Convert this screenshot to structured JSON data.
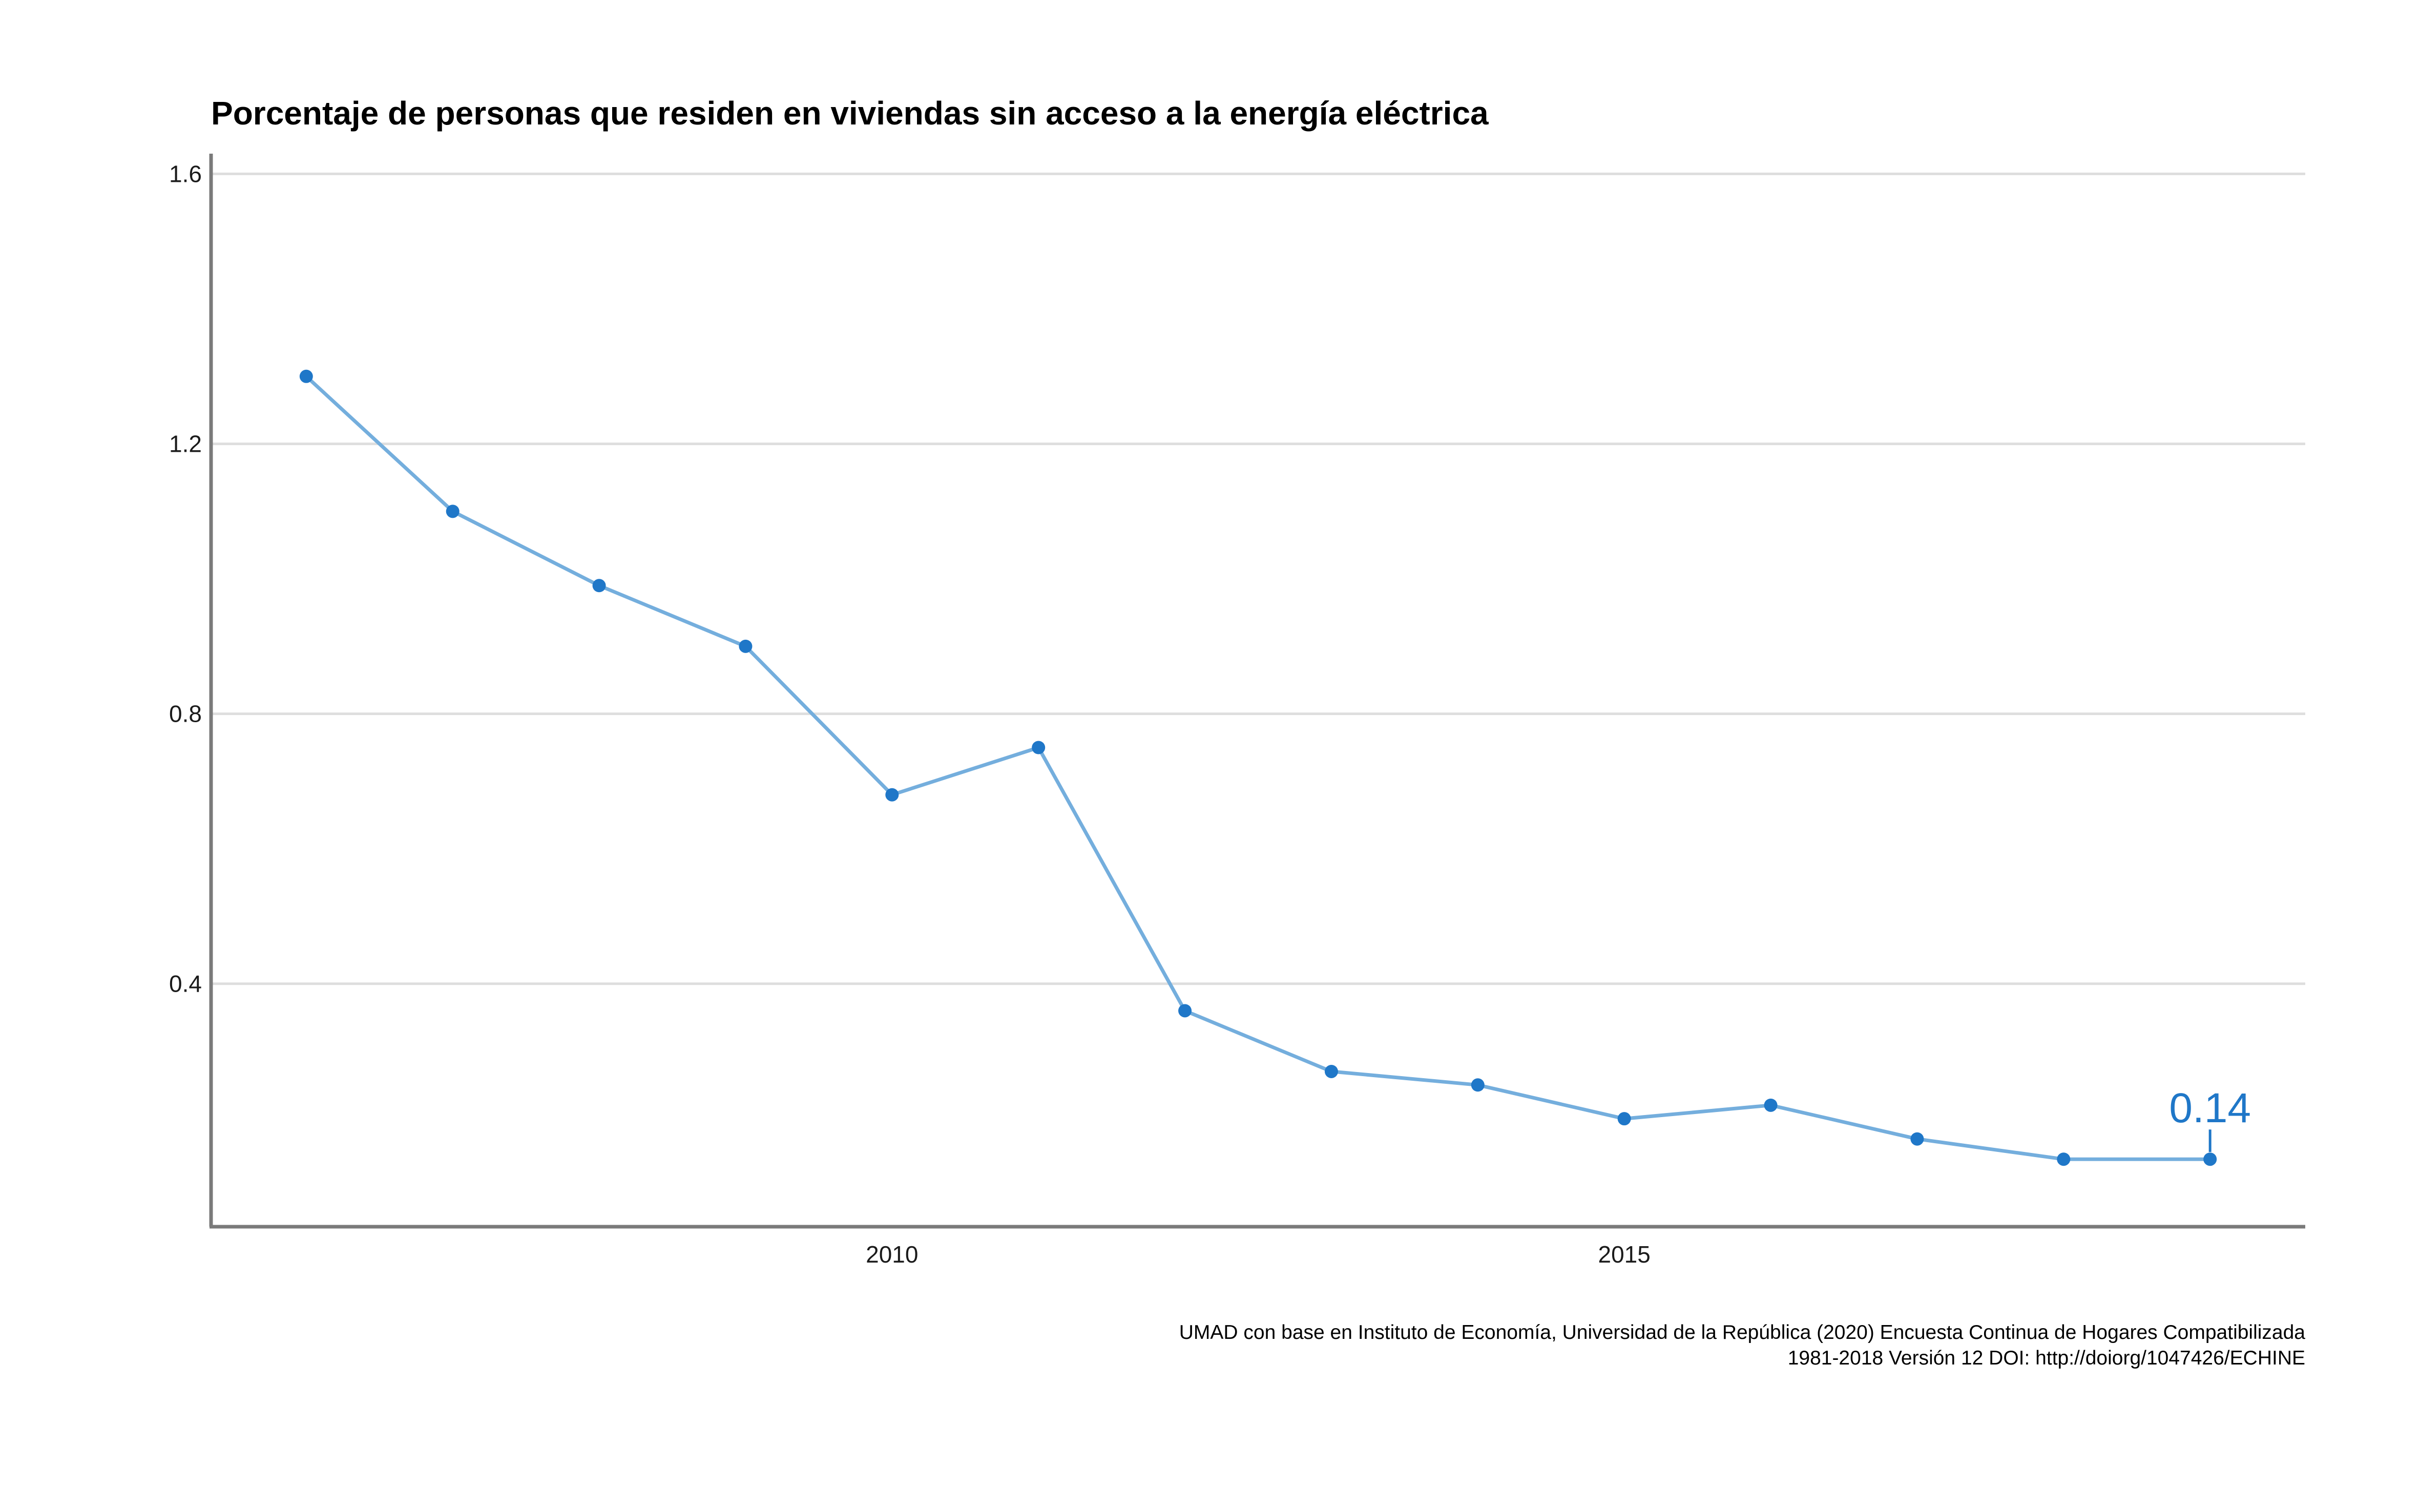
{
  "chart_data": {
    "type": "line",
    "title": "Porcentaje de personas que residen en viviendas sin acceso a la energía eléctrica",
    "xlabel": "",
    "ylabel": "",
    "x": [
      2006,
      2007,
      2008,
      2009,
      2010,
      2011,
      2012,
      2013,
      2014,
      2015,
      2016,
      2017,
      2018,
      2019
    ],
    "series": [
      {
        "values": [
          1.3,
          1.1,
          0.99,
          0.9,
          0.68,
          0.75,
          0.36,
          0.27,
          0.25,
          0.2,
          0.22,
          0.17,
          0.14,
          0.14
        ]
      }
    ],
    "xlim": [
      2005.35,
      2019.65
    ],
    "ylim": [
      0.04,
      1.63
    ],
    "x_ticks": [
      2010,
      2015
    ],
    "x_tick_labels": [
      "2010",
      "2015"
    ],
    "y_ticks": [
      0.4,
      0.8,
      1.2,
      1.6
    ],
    "y_tick_labels": [
      "0.4",
      "0.8",
      "1.2",
      "1.6"
    ],
    "grid": "horizontal",
    "last_point_label": "0.14",
    "caption_lines": [
      "UMAD con base en Instituto de Economía, Universidad de la República (2020) Encuesta Continua de Hogares Compatibilizada",
      "1981-2018 Versión 12 DOI: http://doiorg/1047426/ECHINE"
    ],
    "colors": {
      "line": "#74aedd",
      "points": "#1f77c8",
      "label": "#1f77c8"
    }
  }
}
